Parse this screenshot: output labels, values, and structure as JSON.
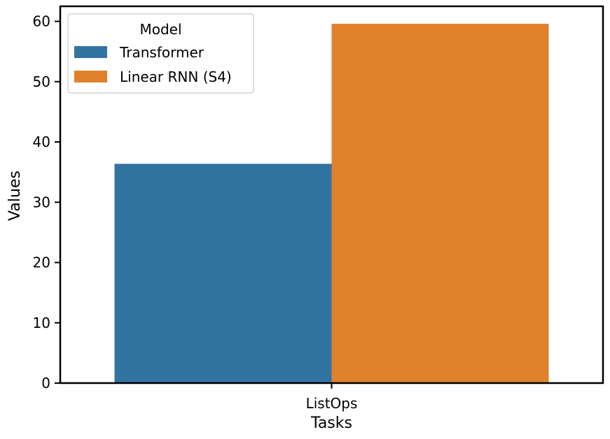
{
  "chart_data": {
    "type": "bar",
    "xlabel": "Tasks",
    "ylabel": "Values",
    "categories": [
      "ListOps"
    ],
    "ylim": [
      0,
      62.5
    ],
    "yticks": [
      0,
      10,
      20,
      30,
      40,
      50,
      60
    ],
    "grid": false,
    "legend": {
      "title": "Model",
      "position": "top-left"
    },
    "series": [
      {
        "name": "Transformer",
        "values": [
          36.37
        ],
        "color": "#3274a1"
      },
      {
        "name": "Linear RNN (S4)",
        "values": [
          59.6
        ],
        "color": "#e1812c"
      }
    ]
  }
}
